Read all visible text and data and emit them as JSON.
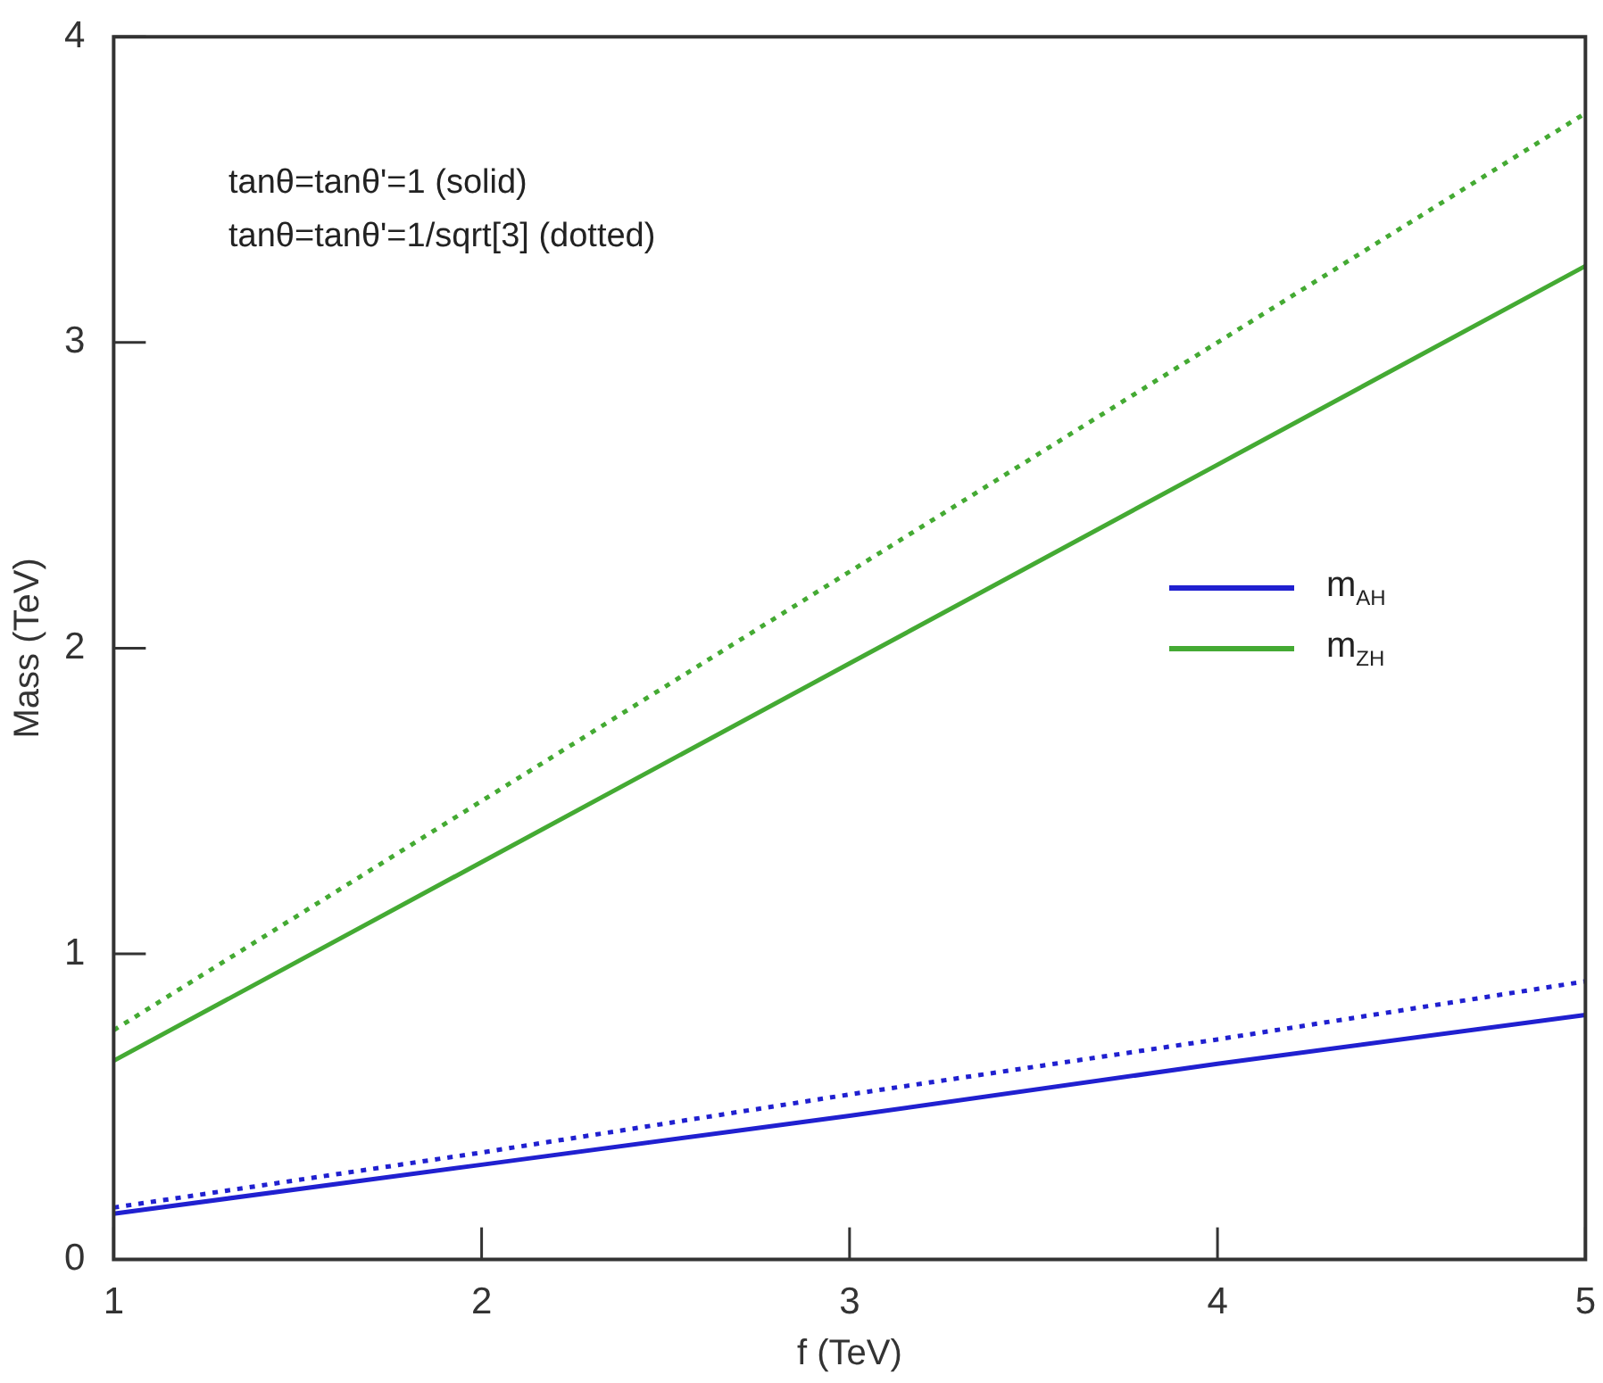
{
  "chart_data": {
    "type": "line",
    "xlabel": "f (TeV)",
    "ylabel": "Mass (TeV)",
    "x": [
      1,
      2,
      3,
      4,
      5
    ],
    "series": [
      {
        "name": "m$_{AH}$",
        "color": "#2020d0",
        "values": [
          0.15,
          0.31,
          0.47,
          0.64,
          0.8
        ],
        "line_style": "solid"
      },
      {
        "color": "#2020d0",
        "values": [
          0.17,
          0.35,
          0.54,
          0.72,
          0.91
        ],
        "line_style": "dotted"
      },
      {
        "name": "m$_{ZH}$",
        "color": "#44aa33",
        "values": [
          0.65,
          1.3,
          1.95,
          2.6,
          3.25
        ],
        "line_style": "solid"
      },
      {
        "color": "#44aa33",
        "values": [
          0.75,
          1.5,
          2.25,
          3.0,
          3.75
        ],
        "line_style": "dotted"
      }
    ],
    "annotations": [
      "tanθ=tanθ'=1 (solid)",
      "tanθ=tanθ'=1/sqrt[3] (dotted)"
    ],
    "legend": "right",
    "grid": false,
    "marker": "none",
    "xlim": [
      1,
      5
    ],
    "ylim": [
      0,
      4
    ],
    "xticks": [
      1,
      2,
      3,
      4,
      5
    ],
    "yticks": [
      0,
      1,
      2,
      3,
      4
    ]
  }
}
